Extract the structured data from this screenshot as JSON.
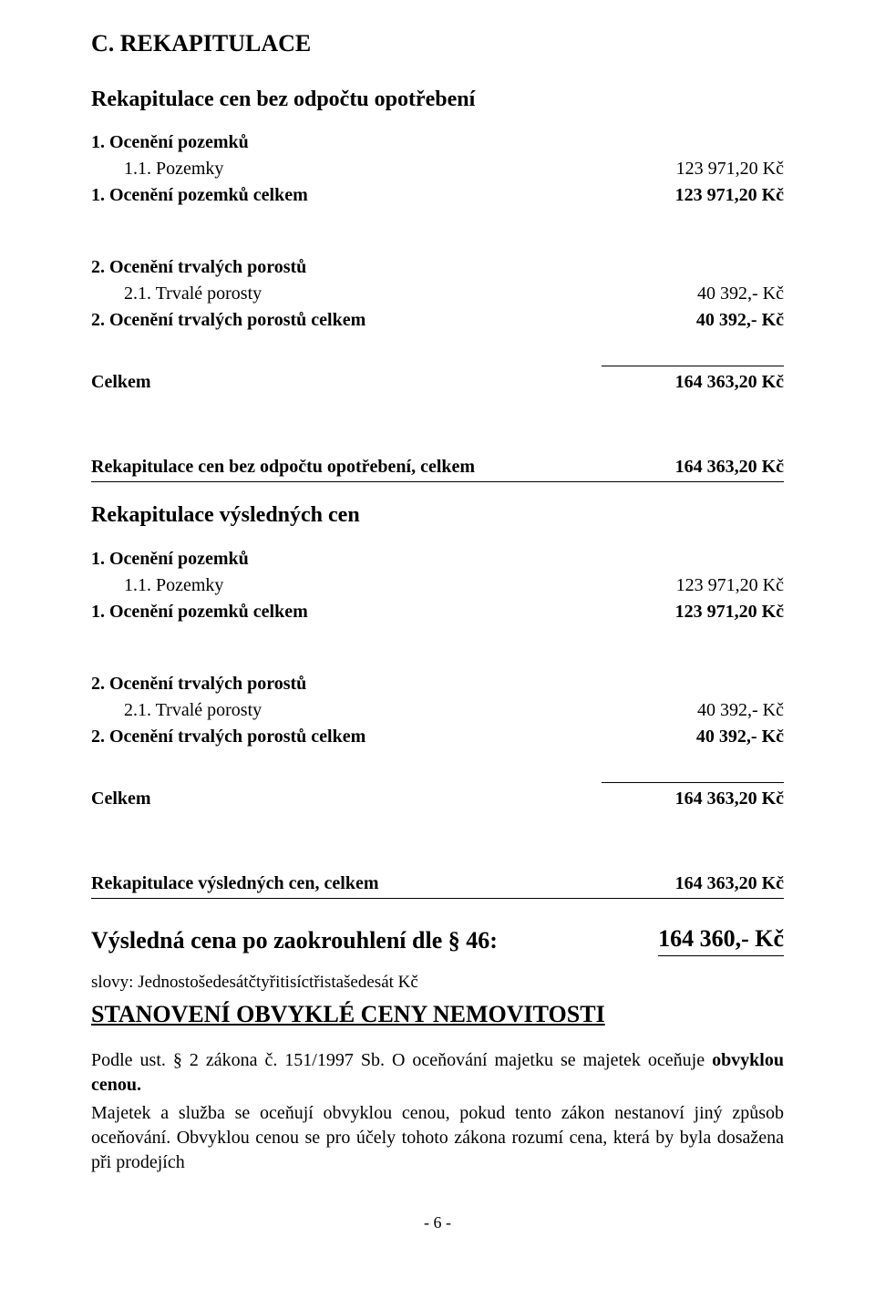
{
  "title_c": "C. REKAPITULACE",
  "recap_no_wear": {
    "heading": "Rekapitulace cen bez odpočtu opotřebení",
    "land": {
      "head": "1. Ocenění pozemků",
      "item_label": "1.1. Pozemky",
      "item_value": "123 971,20 Kč",
      "total_label": "1. Ocenění pozemků celkem",
      "total_value": "123 971,20 Kč"
    },
    "forest": {
      "head": "2. Ocenění trvalých porostů",
      "item_label": "2.1. Trvalé porosty",
      "item_value": "40 392,- Kč",
      "total_label": "2. Ocenění trvalých porostů celkem",
      "total_value": "40 392,- Kč"
    },
    "sum_label": "Celkem",
    "sum_value": "164 363,20 Kč",
    "grand_label": "Rekapitulace cen bez odpočtu opotřebení, celkem",
    "grand_value": "164 363,20 Kč"
  },
  "recap_final": {
    "heading": "Rekapitulace výsledných cen",
    "land": {
      "head": "1. Ocenění pozemků",
      "item_label": "1.1. Pozemky",
      "item_value": "123 971,20 Kč",
      "total_label": "1. Ocenění pozemků celkem",
      "total_value": "123 971,20 Kč"
    },
    "forest": {
      "head": "2. Ocenění trvalých porostů",
      "item_label": "2.1. Trvalé porosty",
      "item_value": "40 392,- Kč",
      "total_label": "2. Ocenění trvalých porostů celkem",
      "total_value": "40 392,- Kč"
    },
    "sum_label": "Celkem",
    "sum_value": "164 363,20 Kč",
    "grand_label": "Rekapitulace výsledných cen, celkem",
    "grand_value": "164 363,20 Kč"
  },
  "final_price": {
    "label": "Výsledná cena po zaokrouhlení dle § 46:",
    "value": "164 360,- Kč",
    "slovy": "slovy: Jednostošedesátčtyřitisíctřistašedesát Kč"
  },
  "stanoveni_heading": "STANOVENÍ OBVYKLÉ CENY NEMOVITOSTI",
  "para1": "Podle ust. § 2 zákona č. 151/1997 Sb. O oceňování majetku se majetek oceňuje obvyklou cenou.",
  "para2": "Majetek a služba se oceňují obvyklou cenou, pokud tento zákon nestanoví jiný způsob oceňování. Obvyklou cenou se pro účely tohoto zákona rozumí cena, která by byla dosažena při prodejích",
  "page_number": "- 6 -",
  "para1_bold_phrase": "obvyklou cenou."
}
